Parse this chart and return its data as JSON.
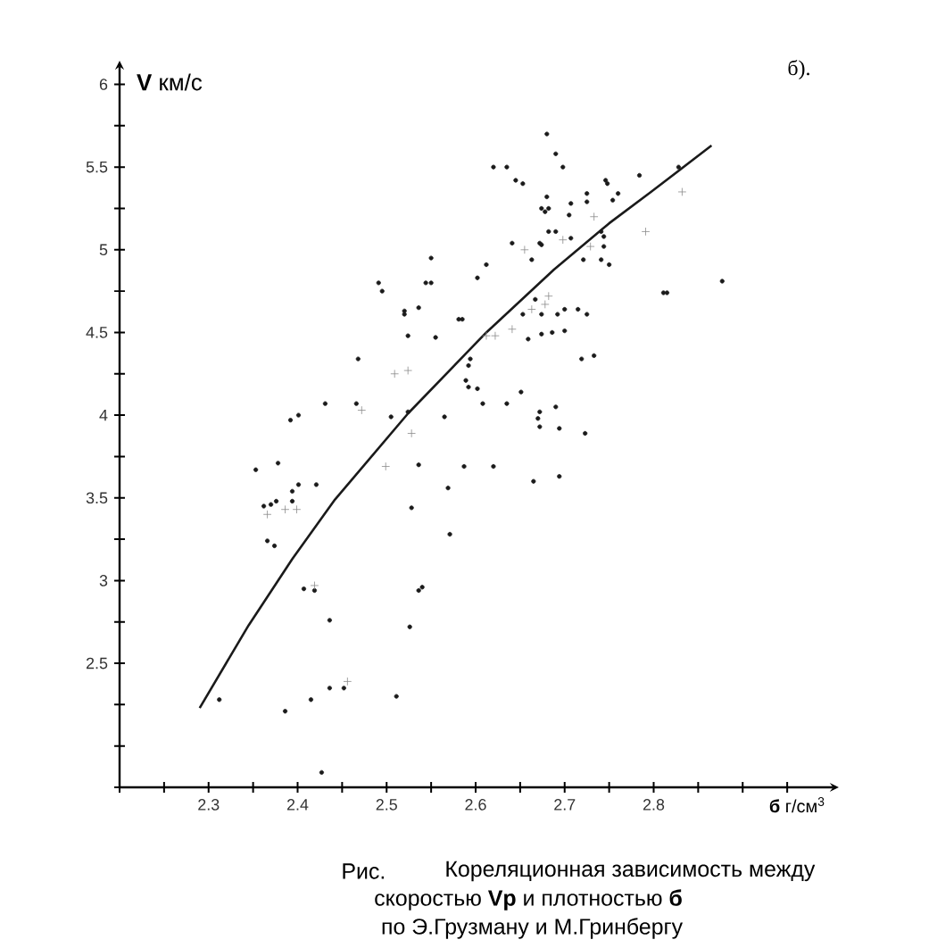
{
  "chart_data": {
    "type": "scatter",
    "xlabel": "**б** г/см$^{3}$",
    "ylabel": "**V** км/с",
    "annotations": [
      "б).",
      "Рис.",
      "Кореляционная зависимость между",
      "скоростью **Vp** и плотностью **б**",
      "по Э.Грузману и М.Гринбергу"
    ],
    "xlim": [
      2.2,
      3.0
    ],
    "ylim": [
      1.75,
      6.1
    ],
    "xticks": [
      {
        "value": 2.2,
        "label": null
      },
      {
        "value": 2.25,
        "label": null
      },
      2.3,
      {
        "value": 2.35,
        "label": null
      },
      2.4,
      {
        "value": 2.45,
        "label": null
      },
      2.5,
      {
        "value": 2.55,
        "label": null
      },
      2.6,
      {
        "value": 2.65,
        "label": null
      },
      2.7,
      {
        "value": 2.75,
        "label": null
      },
      2.8,
      {
        "value": 2.85,
        "label": null
      },
      {
        "value": 2.9,
        "label": null
      },
      {
        "value": 2.95,
        "label": null
      }
    ],
    "yticks": [
      {
        "value": 1.75,
        "label": null
      },
      {
        "value": 2.0,
        "label": null
      },
      {
        "value": 2.25,
        "label": null
      },
      2.5,
      {
        "value": 2.75,
        "label": null
      },
      3,
      {
        "value": 3.25,
        "label": null
      },
      3.5,
      {
        "value": 3.75,
        "label": null
      },
      4,
      {
        "value": 4.25,
        "label": null
      },
      4.5,
      {
        "value": 4.75,
        "label": null
      },
      5,
      {
        "value": 5.25,
        "label": null
      },
      5.5,
      {
        "value": 5.75,
        "label": null
      },
      6
    ],
    "series": [
      {
        "marker": "circle",
        "color": "#1a1a1a",
        "x": [
          2.68,
          2.62,
          2.635,
          2.645,
          2.653,
          2.68,
          2.674,
          2.682,
          2.682,
          2.641,
          2.674,
          2.663,
          2.55,
          2.612,
          2.491,
          2.495,
          2.544,
          2.55,
          2.602,
          2.52,
          2.52,
          2.536,
          2.581,
          2.585,
          2.524,
          2.555,
          2.667,
          2.659,
          2.674,
          2.686,
          2.468,
          2.594,
          2.592,
          2.589,
          2.592,
          2.602,
          2.431,
          2.466,
          2.505,
          2.524,
          2.565,
          2.608,
          2.635,
          2.651,
          2.672,
          2.67,
          2.401,
          2.392,
          2.378,
          2.353,
          2.536,
          2.587,
          2.62,
          2.401,
          2.421,
          2.569,
          2.665,
          2.69,
          2.698,
          2.746,
          2.748,
          2.784,
          2.828,
          2.725,
          2.725,
          2.754,
          2.76,
          2.678,
          2.707,
          2.705,
          2.69,
          2.741,
          2.707,
          2.672,
          2.744,
          2.744,
          2.721,
          2.741,
          2.75,
          2.811,
          2.815,
          2.877,
          2.674,
          2.653,
          2.692,
          2.7,
          2.715,
          2.725,
          2.7,
          2.719,
          2.733,
          2.672,
          2.69,
          2.694,
          2.723,
          2.694,
          2.362,
          2.37,
          2.376,
          2.394,
          2.394,
          2.366,
          2.374,
          2.407,
          2.419,
          2.436,
          2.528,
          2.571,
          2.536,
          2.54,
          2.526,
          2.312,
          2.386,
          2.415,
          2.436,
          2.452,
          2.511,
          2.427
        ],
        "values": [
          5.7,
          5.5,
          5.5,
          5.42,
          5.4,
          5.32,
          5.25,
          5.25,
          5.11,
          5.04,
          5.03,
          4.94,
          4.95,
          4.91,
          4.8,
          4.75,
          4.8,
          4.8,
          4.83,
          4.63,
          4.61,
          4.65,
          4.58,
          4.58,
          4.48,
          4.47,
          4.7,
          4.46,
          4.49,
          4.5,
          4.34,
          4.34,
          4.3,
          4.21,
          4.17,
          4.16,
          4.07,
          4.07,
          3.99,
          4.02,
          3.99,
          4.07,
          4.07,
          4.14,
          4.02,
          3.98,
          4.0,
          3.97,
          3.71,
          3.67,
          3.7,
          3.69,
          3.69,
          3.58,
          3.58,
          3.56,
          3.6,
          5.58,
          5.5,
          5.42,
          5.4,
          5.45,
          5.5,
          5.34,
          5.29,
          5.3,
          5.34,
          5.23,
          5.28,
          5.21,
          5.11,
          5.11,
          5.07,
          5.04,
          5.02,
          5.08,
          4.94,
          4.94,
          4.91,
          4.74,
          4.74,
          4.81,
          4.61,
          4.61,
          4.61,
          4.64,
          4.64,
          4.61,
          4.51,
          4.34,
          4.36,
          3.93,
          4.05,
          3.92,
          3.89,
          3.63,
          3.45,
          3.46,
          3.48,
          3.54,
          3.48,
          3.24,
          3.21,
          2.95,
          2.94,
          2.76,
          3.44,
          3.28,
          2.94,
          2.96,
          2.72,
          2.28,
          2.21,
          2.28,
          2.35,
          2.35,
          2.3,
          1.84
        ]
      },
      {
        "marker": "cross",
        "color": "#8a8a8a",
        "x": [
          2.655,
          2.509,
          2.524,
          2.499,
          2.528,
          2.472,
          2.612,
          2.622,
          2.641,
          2.663,
          2.678,
          2.698,
          2.733,
          2.832,
          2.729,
          2.791,
          2.682,
          2.366,
          2.386,
          2.399,
          2.419,
          2.456
        ],
        "values": [
          5.0,
          4.25,
          4.27,
          3.69,
          3.89,
          4.03,
          4.48,
          4.48,
          4.52,
          4.64,
          4.67,
          5.06,
          5.2,
          5.35,
          5.02,
          5.11,
          4.72,
          3.4,
          3.43,
          3.43,
          2.97,
          2.39
        ]
      },
      {
        "type": "line",
        "marker": "none",
        "color": "#1a1a1a",
        "x": [
          2.29,
          2.345,
          2.394,
          2.442,
          2.524,
          2.612,
          2.688,
          2.75,
          2.797,
          2.865
        ],
        "values": [
          2.23,
          2.73,
          3.13,
          3.49,
          4.01,
          4.5,
          4.88,
          5.16,
          5.35,
          5.63
        ]
      }
    ]
  }
}
